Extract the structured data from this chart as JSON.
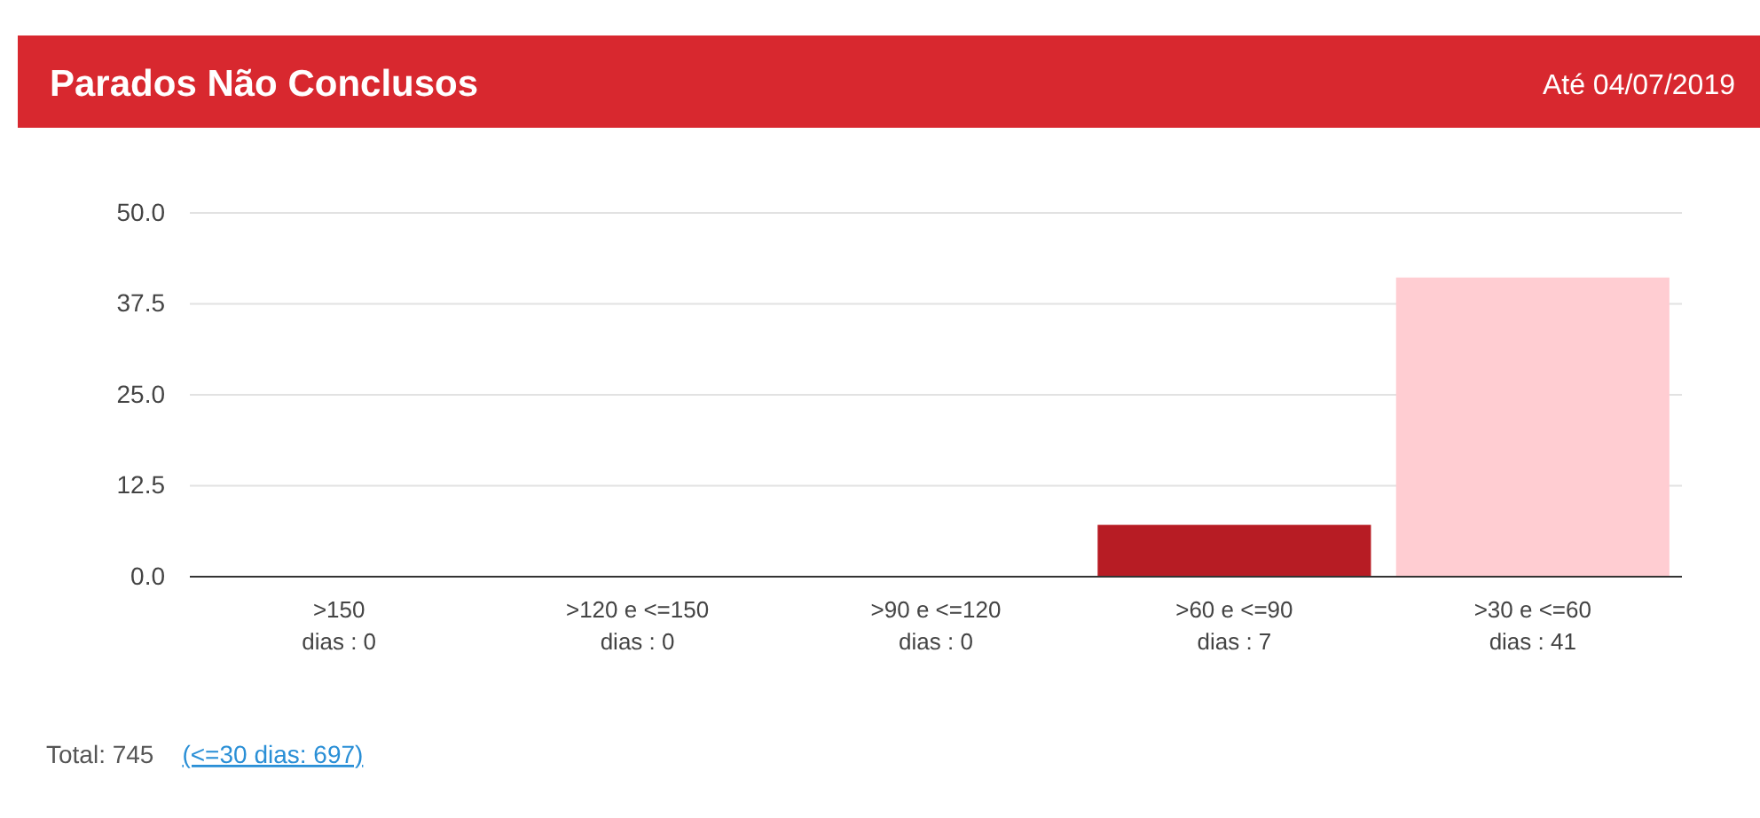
{
  "chart_data": {
    "type": "bar",
    "title": "Parados Não Conclusos",
    "subtitle": "Até 04/07/2019",
    "categories": [
      ">150\ndias : 0",
      ">120 e <=150\ndias : 0",
      ">90 e <=120\ndias : 0",
      ">60 e <=90\ndias : 7",
      ">30 e <=60\ndias : 41"
    ],
    "values": [
      0,
      0,
      0,
      7,
      41
    ],
    "colors": [
      "#8b1a1a",
      "#a31f24",
      "#b0222a",
      "#b71c24",
      "#ffcdd2"
    ],
    "ylim": [
      0,
      50
    ],
    "yticks": [
      {
        "value": 0,
        "label": "0.0"
      },
      12.5,
      {
        "value": 25,
        "label": "25.0"
      },
      37.5,
      {
        "value": 50,
        "label": "50.0"
      }
    ],
    "grid": "y",
    "annotations": [
      "Total: 745",
      "(<=30 dias: 697)"
    ]
  }
}
